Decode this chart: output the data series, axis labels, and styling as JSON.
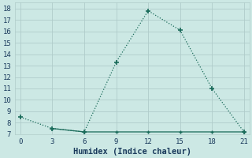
{
  "xlabel": "Humidex (Indice chaleur)",
  "line1_x": [
    0,
    3,
    6,
    9,
    12,
    15,
    18,
    21
  ],
  "line1_y": [
    8.5,
    7.5,
    7.2,
    13.3,
    17.8,
    16.1,
    11.0,
    7.2
  ],
  "line2_x": [
    3,
    6,
    9,
    12,
    15,
    18,
    21
  ],
  "line2_y": [
    7.5,
    7.2,
    7.2,
    7.2,
    7.2,
    7.2,
    7.2
  ],
  "xlim": [
    -0.5,
    21.5
  ],
  "ylim": [
    7,
    18.5
  ],
  "xticks": [
    0,
    3,
    6,
    9,
    12,
    15,
    18,
    21
  ],
  "yticks": [
    7,
    8,
    9,
    10,
    11,
    12,
    13,
    14,
    15,
    16,
    17,
    18
  ],
  "line_color": "#1a6b5a",
  "bg_color": "#cce8e4",
  "grid_color": "#b0ccca",
  "font_color": "#1a3a5c",
  "font_family": "monospace",
  "xlabel_fontsize": 7.5,
  "tick_fontsize": 6.5
}
